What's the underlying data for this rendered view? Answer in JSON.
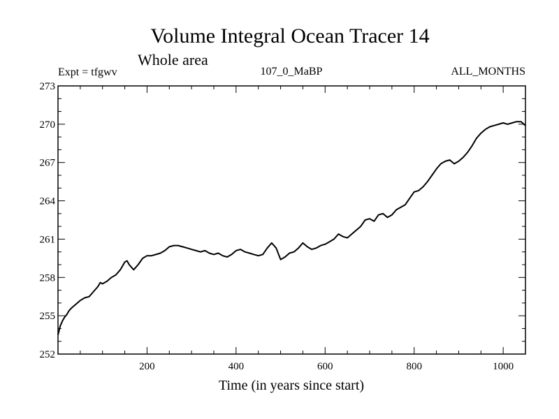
{
  "chart_data": {
    "type": "line",
    "title": "Volume Integral Ocean Tracer 14",
    "subtitle": "Whole area",
    "left_label": "Expt = tfgwv",
    "center_label": "107_0_MaBP",
    "right_label": "ALL_MONTHS",
    "xlabel": "Time (in years since start)",
    "ylabel": "",
    "xlim": [
      0,
      1050
    ],
    "ylim": [
      252,
      273
    ],
    "x_ticks": [
      200,
      400,
      600,
      800,
      1000
    ],
    "y_ticks": [
      252,
      255,
      258,
      261,
      264,
      267,
      270,
      273
    ],
    "grid": false,
    "series": [
      {
        "x": [
          0,
          5,
          10,
          15,
          20,
          25,
          30,
          40,
          50,
          60,
          70,
          80,
          90,
          95,
          100,
          110,
          120,
          130,
          140,
          150,
          155,
          160,
          170,
          180,
          190,
          200,
          210,
          220,
          230,
          240,
          250,
          260,
          270,
          280,
          290,
          300,
          310,
          320,
          330,
          340,
          350,
          360,
          370,
          380,
          390,
          400,
          410,
          420,
          430,
          440,
          450,
          460,
          470,
          480,
          490,
          500,
          510,
          520,
          530,
          540,
          550,
          560,
          570,
          580,
          590,
          600,
          610,
          620,
          630,
          640,
          650,
          660,
          670,
          680,
          690,
          700,
          710,
          720,
          730,
          740,
          750,
          760,
          770,
          780,
          790,
          800,
          810,
          820,
          830,
          840,
          850,
          860,
          870,
          880,
          890,
          900,
          910,
          920,
          930,
          940,
          950,
          960,
          970,
          980,
          990,
          1000,
          1010,
          1020,
          1030,
          1040,
          1050
        ],
        "y": [
          253.5,
          254.2,
          254.6,
          254.9,
          255.1,
          255.4,
          255.6,
          255.9,
          256.2,
          256.4,
          256.5,
          256.9,
          257.3,
          257.6,
          257.5,
          257.7,
          258.0,
          258.2,
          258.6,
          259.2,
          259.3,
          259.0,
          258.6,
          259.0,
          259.5,
          259.7,
          259.7,
          259.8,
          259.9,
          260.1,
          260.4,
          260.5,
          260.5,
          260.4,
          260.3,
          260.2,
          260.1,
          260.0,
          260.1,
          259.9,
          259.8,
          259.9,
          259.7,
          259.6,
          259.8,
          260.1,
          260.2,
          260.0,
          259.9,
          259.8,
          259.7,
          259.8,
          260.3,
          260.7,
          260.3,
          259.4,
          259.6,
          259.9,
          260.0,
          260.3,
          260.7,
          260.4,
          260.2,
          260.3,
          260.5,
          260.6,
          260.8,
          261.0,
          261.4,
          261.2,
          261.1,
          261.4,
          261.7,
          262.0,
          262.5,
          262.6,
          262.4,
          262.9,
          263.0,
          262.7,
          262.9,
          263.3,
          263.5,
          263.7,
          264.2,
          264.7,
          264.8,
          265.1,
          265.5,
          266.0,
          266.5,
          266.9,
          267.1,
          267.2,
          266.9,
          267.1,
          267.4,
          267.8,
          268.3,
          268.9,
          269.3,
          269.6,
          269.8,
          269.9,
          270.0,
          270.1,
          270.0,
          270.1,
          270.2,
          270.2,
          269.9
        ]
      }
    ]
  }
}
